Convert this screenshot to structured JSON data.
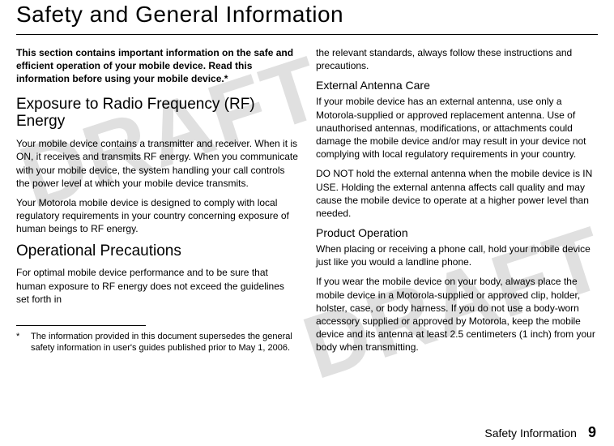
{
  "watermark_text": "DRAFT",
  "main_title": "Safety and General Information",
  "left": {
    "intro": "This section contains important information on the safe and efficient operation of your mobile device. Read this information before using your mobile device.*",
    "h1": "Exposure to Radio Frequency (RF) Energy",
    "p1": "Your mobile device contains a transmitter and receiver. When it is ON, it receives and transmits RF energy. When you communicate with your mobile device, the system handling your call controls the power level at which your mobile device transmits.",
    "p2": "Your Motorola mobile device is designed to comply with local regulatory requirements in your country concerning exposure of human beings to RF energy.",
    "h2": "Operational Precautions",
    "p3": "For optimal mobile device performance and to be sure that human exposure to RF energy does not exceed the guidelines set forth in",
    "footnote_mark": "*",
    "footnote": "The information provided in this document supersedes the general safety information in user's guides published prior to May 1, 2006."
  },
  "right": {
    "p1": "the relevant standards, always follow these instructions and precautions.",
    "sub1": "External Antenna Care",
    "p2": "If your mobile device has an external antenna, use only a Motorola-supplied or approved replacement antenna. Use of unauthorised antennas, modifications, or attachments could damage the mobile device and/or may result in your device not complying with local regulatory requirements in your country.",
    "p3": "DO NOT hold the external antenna when the mobile device is IN USE. Holding the external antenna affects call quality and may cause the mobile device to operate at a higher power level than needed.",
    "sub2": "Product Operation",
    "p4": "When placing or receiving a phone call, hold your mobile device just like you would a landline phone.",
    "p5": "If you wear the mobile device on your body, always place the mobile device in a Motorola-supplied or approved clip, holder, holster, case, or body harness. If you do not use a body-worn accessory supplied or approved by Motorola, keep the mobile device and its antenna at least 2.5 centimeters (1 inch) from your body when transmitting."
  },
  "footer": {
    "label": "Safety Information",
    "page": "9"
  }
}
